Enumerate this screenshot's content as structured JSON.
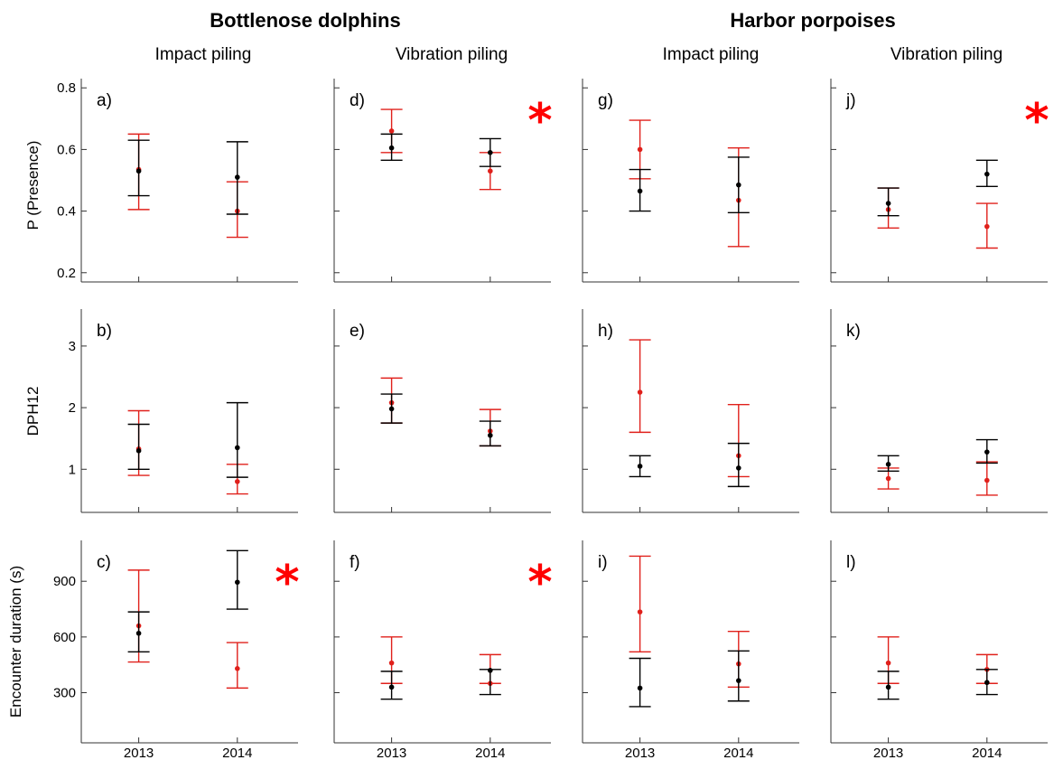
{
  "colors": {
    "series_black": "#000000",
    "series_red": "#e0201b",
    "asterisk": "#ff0000",
    "axis": "#333333"
  },
  "figure": {
    "groups": [
      "Bottlenose dolphins",
      "Harbor porpoises"
    ],
    "columns": [
      "Impact piling",
      "Vibration piling",
      "Impact piling",
      "Vibration piling"
    ],
    "row_labels": [
      "P (Presence)",
      "DPH12",
      "Encounter duration (s)"
    ],
    "x_tick_labels": [
      "2013",
      "2014"
    ]
  },
  "chart_data": [
    {
      "type": "scatter",
      "label": "a)",
      "significant": false,
      "ylabel": "P (Presence)",
      "ylim": [
        0.17,
        0.83
      ],
      "yticks": [
        0.2,
        0.4,
        0.6,
        0.8
      ],
      "categories": [
        "2013",
        "2014"
      ],
      "series": [
        {
          "color": "black",
          "values": [
            0.53,
            0.51
          ],
          "lower": [
            0.45,
            0.39
          ],
          "upper": [
            0.63,
            0.625
          ]
        },
        {
          "color": "red",
          "values": [
            0.535,
            0.4
          ],
          "lower": [
            0.405,
            0.315
          ],
          "upper": [
            0.65,
            0.495
          ]
        }
      ]
    },
    {
      "type": "scatter",
      "label": "d)",
      "significant": true,
      "ylabel": "",
      "ylim": [
        0.17,
        0.83
      ],
      "yticks": [
        0.2,
        0.4,
        0.6,
        0.8
      ],
      "categories": [
        "2013",
        "2014"
      ],
      "series": [
        {
          "color": "black",
          "values": [
            0.605,
            0.59
          ],
          "lower": [
            0.565,
            0.545
          ],
          "upper": [
            0.65,
            0.635
          ]
        },
        {
          "color": "red",
          "values": [
            0.66,
            0.53
          ],
          "lower": [
            0.59,
            0.47
          ],
          "upper": [
            0.73,
            0.59
          ]
        }
      ]
    },
    {
      "type": "scatter",
      "label": "g)",
      "significant": false,
      "ylabel": "",
      "ylim": [
        0.17,
        0.83
      ],
      "yticks": [
        0.2,
        0.4,
        0.6,
        0.8
      ],
      "categories": [
        "2013",
        "2014"
      ],
      "series": [
        {
          "color": "black",
          "values": [
            0.465,
            0.485
          ],
          "lower": [
            0.4,
            0.395
          ],
          "upper": [
            0.535,
            0.575
          ]
        },
        {
          "color": "red",
          "values": [
            0.6,
            0.435
          ],
          "lower": [
            0.505,
            0.285
          ],
          "upper": [
            0.695,
            0.605
          ]
        }
      ]
    },
    {
      "type": "scatter",
      "label": "j)",
      "significant": true,
      "ylabel": "",
      "ylim": [
        0.17,
        0.83
      ],
      "yticks": [
        0.2,
        0.4,
        0.6,
        0.8
      ],
      "categories": [
        "2013",
        "2014"
      ],
      "series": [
        {
          "color": "black",
          "values": [
            0.425,
            0.52
          ],
          "lower": [
            0.385,
            0.48
          ],
          "upper": [
            0.475,
            0.565
          ]
        },
        {
          "color": "red",
          "values": [
            0.405,
            0.35
          ],
          "lower": [
            0.345,
            0.28
          ],
          "upper": [
            0.475,
            0.425
          ]
        }
      ]
    },
    {
      "type": "scatter",
      "label": "b)",
      "significant": false,
      "ylabel": "DPH12",
      "ylim": [
        0.3,
        3.6
      ],
      "yticks": [
        1,
        2,
        3
      ],
      "categories": [
        "2013",
        "2014"
      ],
      "series": [
        {
          "color": "black",
          "values": [
            1.3,
            1.35
          ],
          "lower": [
            1.0,
            0.87
          ],
          "upper": [
            1.73,
            2.08
          ]
        },
        {
          "color": "red",
          "values": [
            1.33,
            0.8
          ],
          "lower": [
            0.9,
            0.6
          ],
          "upper": [
            1.95,
            1.08
          ]
        }
      ]
    },
    {
      "type": "scatter",
      "label": "e)",
      "significant": false,
      "ylabel": "",
      "ylim": [
        0.3,
        3.6
      ],
      "yticks": [
        1,
        2,
        3
      ],
      "categories": [
        "2013",
        "2014"
      ],
      "series": [
        {
          "color": "black",
          "values": [
            1.98,
            1.55
          ],
          "lower": [
            1.75,
            1.38
          ],
          "upper": [
            2.22,
            1.78
          ]
        },
        {
          "color": "red",
          "values": [
            2.08,
            1.62
          ],
          "lower": [
            1.75,
            1.38
          ],
          "upper": [
            2.48,
            1.97
          ]
        }
      ]
    },
    {
      "type": "scatter",
      "label": "h)",
      "significant": false,
      "ylabel": "",
      "ylim": [
        0.3,
        3.6
      ],
      "yticks": [
        1,
        2,
        3
      ],
      "categories": [
        "2013",
        "2014"
      ],
      "series": [
        {
          "color": "black",
          "values": [
            1.05,
            1.02
          ],
          "lower": [
            0.88,
            0.72
          ],
          "upper": [
            1.22,
            1.42
          ]
        },
        {
          "color": "red",
          "values": [
            2.25,
            1.22
          ],
          "lower": [
            1.6,
            0.88
          ],
          "upper": [
            3.1,
            2.05
          ]
        }
      ]
    },
    {
      "type": "scatter",
      "label": "k)",
      "significant": false,
      "ylabel": "",
      "ylim": [
        0.3,
        3.6
      ],
      "yticks": [
        1,
        2,
        3
      ],
      "categories": [
        "2013",
        "2014"
      ],
      "series": [
        {
          "color": "black",
          "values": [
            1.08,
            1.28
          ],
          "lower": [
            0.97,
            1.1
          ],
          "upper": [
            1.22,
            1.48
          ]
        },
        {
          "color": "red",
          "values": [
            0.85,
            0.82
          ],
          "lower": [
            0.68,
            0.58
          ],
          "upper": [
            1.02,
            1.12
          ]
        }
      ]
    },
    {
      "type": "scatter",
      "label": "c)",
      "significant": true,
      "ylabel": "Encounter duration (s)",
      "ylim": [
        30,
        1120
      ],
      "yticks": [
        300,
        600,
        900
      ],
      "categories": [
        "2013",
        "2014"
      ],
      "series": [
        {
          "color": "black",
          "values": [
            620,
            895
          ],
          "lower": [
            520,
            750
          ],
          "upper": [
            735,
            1065
          ]
        },
        {
          "color": "red",
          "values": [
            660,
            430
          ],
          "lower": [
            465,
            325
          ],
          "upper": [
            960,
            570
          ]
        }
      ]
    },
    {
      "type": "scatter",
      "label": "f)",
      "significant": true,
      "ylabel": "",
      "ylim": [
        30,
        1120
      ],
      "yticks": [
        300,
        600,
        900
      ],
      "categories": [
        "2013",
        "2014"
      ],
      "series": [
        {
          "color": "black",
          "values": [
            330,
            420
          ],
          "lower": [
            265,
            290
          ],
          "upper": [
            415,
            425
          ]
        },
        {
          "color": "red",
          "values": [
            460,
            350
          ],
          "lower": [
            350,
            350
          ],
          "upper": [
            600,
            505
          ]
        }
      ]
    },
    {
      "type": "scatter",
      "label": "i)",
      "significant": false,
      "ylabel": "",
      "ylim": [
        30,
        1120
      ],
      "yticks": [
        300,
        600,
        900
      ],
      "categories": [
        "2013",
        "2014"
      ],
      "series": [
        {
          "color": "black",
          "values": [
            325,
            365
          ],
          "lower": [
            225,
            255
          ],
          "upper": [
            485,
            525
          ]
        },
        {
          "color": "red",
          "values": [
            735,
            455
          ],
          "lower": [
            520,
            330
          ],
          "upper": [
            1035,
            630
          ]
        }
      ]
    },
    {
      "type": "scatter",
      "label": "l)",
      "significant": false,
      "ylabel": "",
      "ylim": [
        30,
        1120
      ],
      "yticks": [
        300,
        600,
        900
      ],
      "categories": [
        "2013",
        "2014"
      ],
      "series": [
        {
          "color": "black",
          "values": [
            330,
            355
          ],
          "lower": [
            265,
            290
          ],
          "upper": [
            415,
            425
          ]
        },
        {
          "color": "red",
          "values": [
            460,
            425
          ],
          "lower": [
            350,
            350
          ],
          "upper": [
            600,
            505
          ]
        }
      ]
    }
  ]
}
